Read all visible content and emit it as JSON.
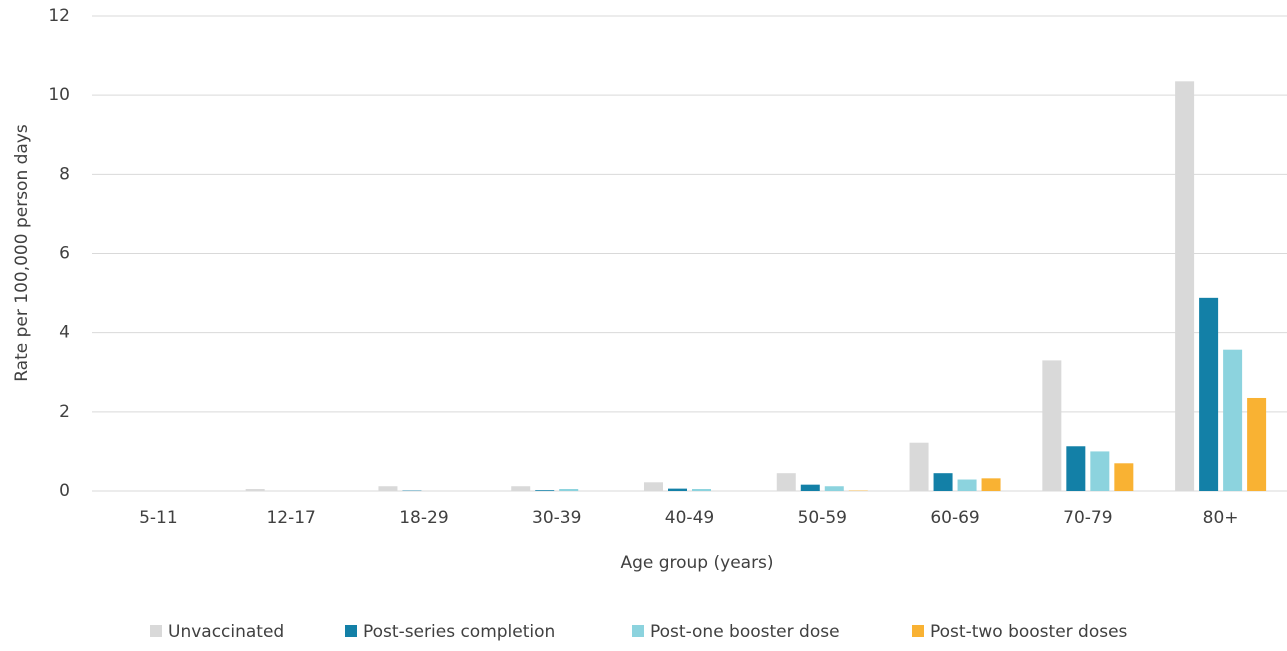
{
  "chart_data": {
    "type": "bar",
    "x_label": "Age group (years)",
    "y_label": "Rate per 100,000 person days",
    "categories": [
      "5-11",
      "12-17",
      "18-29",
      "30-39",
      "40-49",
      "50-59",
      "60-69",
      "70-79",
      "80+"
    ],
    "series": [
      {
        "name": "Unvaccinated",
        "color": "#d9d9d9",
        "values": [
          0,
          0.05,
          0.12,
          0.12,
          0.22,
          0.45,
          1.22,
          3.3,
          10.35
        ]
      },
      {
        "name": "Post-series completion",
        "color": "#1380a7",
        "values": [
          0,
          0,
          0.01,
          0.02,
          0.06,
          0.16,
          0.45,
          1.13,
          4.88
        ]
      },
      {
        "name": "Post-one booster dose",
        "color": "#8cd3de",
        "values": [
          0,
          0,
          0,
          0.05,
          0.05,
          0.12,
          0.29,
          1.0,
          3.57
        ]
      },
      {
        "name": "Post-two booster doses",
        "color": "#f9b233",
        "values": [
          0,
          0,
          0,
          0,
          0,
          0.01,
          0.32,
          0.7,
          2.35
        ]
      }
    ],
    "ylim": [
      0,
      12
    ],
    "yticks": [
      0,
      2,
      4,
      6,
      8,
      10,
      12
    ],
    "grid": true,
    "legend": "bottom"
  }
}
